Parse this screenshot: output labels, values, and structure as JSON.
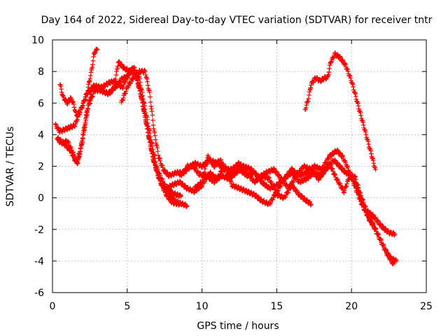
{
  "chart_data": {
    "type": "scatter",
    "title": "Day 164 of 2022, Sidereal Day-to-day VTEC variation (SDTVAR) for receiver tntr",
    "xlabel": "GPS time / hours",
    "ylabel": "SDTVAR / TECUs",
    "xlim": [
      0,
      25
    ],
    "ylim": [
      -6,
      10
    ],
    "xticks": [
      0,
      5,
      10,
      15,
      20,
      25
    ],
    "yticks": [
      -6,
      -4,
      -2,
      0,
      2,
      4,
      6,
      8,
      10
    ],
    "xtick_labels": [
      "0",
      "5",
      "10",
      "15",
      "20",
      "25"
    ],
    "ytick_labels": [
      "-6",
      "-4",
      "-2",
      "0",
      "2",
      "4",
      "6",
      "8",
      "10"
    ],
    "grid": true,
    "marker": "plus",
    "series": [
      {
        "name": "tntr",
        "color": "#ff0000",
        "tracks": [
          [
            [
              0.2,
              4.6
            ],
            [
              0.5,
              4.2
            ],
            [
              1.0,
              4.4
            ],
            [
              1.5,
              4.6
            ],
            [
              2.0,
              5.8
            ],
            [
              2.3,
              6.6
            ],
            [
              2.6,
              8.0
            ],
            [
              2.8,
              9.2
            ],
            [
              3.0,
              9.4
            ]
          ],
          [
            [
              0.4,
              3.6
            ],
            [
              0.8,
              3.4
            ],
            [
              1.2,
              3.0
            ],
            [
              1.5,
              2.4
            ],
            [
              1.7,
              2.2
            ],
            [
              2.0,
              3.6
            ],
            [
              2.4,
              5.8
            ],
            [
              2.8,
              6.8
            ],
            [
              3.2,
              6.8
            ],
            [
              3.7,
              6.6
            ],
            [
              4.2,
              7.0
            ],
            [
              4.7,
              7.6
            ],
            [
              5.0,
              7.6
            ],
            [
              5.4,
              8.3
            ],
            [
              5.8,
              7.6
            ],
            [
              6.2,
              5.6
            ],
            [
              6.6,
              3.6
            ],
            [
              7.0,
              1.8
            ],
            [
              7.5,
              0.8
            ],
            [
              8.0,
              0.3
            ],
            [
              8.6,
              0.1
            ]
          ],
          [
            [
              0.3,
              3.8
            ],
            [
              0.7,
              3.5
            ],
            [
              1.0,
              3.6
            ],
            [
              1.4,
              2.8
            ],
            [
              1.6,
              2.2
            ],
            [
              1.9,
              3.2
            ],
            [
              2.3,
              5.5
            ],
            [
              2.7,
              7.1
            ],
            [
              3.2,
              6.8
            ],
            [
              3.8,
              6.6
            ],
            [
              4.3,
              7.2
            ],
            [
              4.7,
              7.0
            ],
            [
              5.1,
              8.0
            ],
            [
              5.5,
              8.0
            ],
            [
              5.9,
              6.5
            ],
            [
              6.3,
              4.6
            ],
            [
              6.7,
              2.6
            ],
            [
              7.2,
              1.0
            ],
            [
              7.7,
              0.3
            ],
            [
              8.2,
              -0.2
            ],
            [
              8.7,
              -0.4
            ],
            [
              9.0,
              -0.5
            ]
          ],
          [
            [
              0.5,
              7.2
            ],
            [
              0.7,
              6.4
            ],
            [
              1.0,
              6.0
            ],
            [
              1.2,
              6.3
            ],
            [
              1.4,
              6.0
            ],
            [
              1.6,
              5.2
            ],
            [
              1.9,
              5.6
            ],
            [
              2.3,
              6.6
            ],
            [
              2.8,
              7.1
            ],
            [
              3.3,
              7.0
            ],
            [
              3.8,
              7.3
            ],
            [
              4.2,
              7.4
            ],
            [
              4.4,
              8.6
            ],
            [
              4.8,
              8.2
            ],
            [
              5.2,
              8.0
            ],
            [
              5.6,
              7.8
            ],
            [
              6.0,
              6.2
            ],
            [
              6.4,
              4.0
            ],
            [
              6.8,
              2.2
            ],
            [
              7.2,
              1.0
            ],
            [
              7.6,
              0.2
            ],
            [
              8.0,
              -0.3
            ],
            [
              8.5,
              -0.4
            ]
          ],
          [
            [
              4.6,
              6.0
            ],
            [
              5.0,
              7.0
            ],
            [
              5.4,
              7.6
            ],
            [
              5.8,
              8.0
            ],
            [
              6.2,
              8.0
            ],
            [
              6.5,
              6.6
            ],
            [
              6.8,
              4.2
            ],
            [
              7.1,
              2.6
            ],
            [
              7.4,
              1.8
            ],
            [
              7.8,
              1.4
            ],
            [
              8.3,
              1.6
            ],
            [
              8.8,
              1.6
            ],
            [
              9.0,
              2.0
            ],
            [
              9.4,
              2.0
            ],
            [
              9.8,
              1.5
            ],
            [
              10.3,
              1.4
            ],
            [
              10.8,
              1.0
            ],
            [
              11.3,
              1.4
            ],
            [
              11.8,
              1.2
            ],
            [
              12.3,
              1.6
            ],
            [
              12.8,
              2.0
            ],
            [
              13.3,
              1.8
            ],
            [
              13.8,
              1.3
            ],
            [
              14.3,
              1.6
            ],
            [
              14.8,
              1.8
            ],
            [
              15.3,
              1.2
            ],
            [
              15.8,
              0.6
            ],
            [
              16.3,
              1.4
            ],
            [
              16.8,
              2.0
            ],
            [
              17.3,
              1.8
            ],
            [
              17.8,
              1.2
            ],
            [
              18.3,
              1.8
            ],
            [
              18.8,
              2.4
            ],
            [
              19.2,
              2.0
            ],
            [
              19.6,
              1.6
            ],
            [
              20.0,
              1.4
            ],
            [
              20.4,
              0.6
            ],
            [
              20.8,
              -0.6
            ],
            [
              21.2,
              -1.4
            ],
            [
              21.6,
              -2.0
            ],
            [
              22.0,
              -2.8
            ],
            [
              22.4,
              -3.6
            ],
            [
              22.8,
              -4.2
            ]
          ],
          [
            [
              7.6,
              0.6
            ],
            [
              8.0,
              0.8
            ],
            [
              8.5,
              1.0
            ],
            [
              9.0,
              0.6
            ],
            [
              9.5,
              0.4
            ],
            [
              10.0,
              0.8
            ],
            [
              10.5,
              1.6
            ],
            [
              11.0,
              1.2
            ],
            [
              11.5,
              2.0
            ],
            [
              12.0,
              1.4
            ],
            [
              12.5,
              1.8
            ],
            [
              13.0,
              1.4
            ],
            [
              13.5,
              1.6
            ],
            [
              14.0,
              1.0
            ],
            [
              14.5,
              0.6
            ],
            [
              15.0,
              0.8
            ],
            [
              15.5,
              1.2
            ],
            [
              16.0,
              1.6
            ],
            [
              16.5,
              1.0
            ],
            [
              17.0,
              1.2
            ],
            [
              17.5,
              1.6
            ],
            [
              18.0,
              1.4
            ],
            [
              18.5,
              2.2
            ],
            [
              19.0,
              1.2
            ],
            [
              19.5,
              0.4
            ],
            [
              19.8,
              1.2
            ],
            [
              20.2,
              1.4
            ],
            [
              20.6,
              0.2
            ],
            [
              21.0,
              -0.8
            ],
            [
              21.5,
              -1.2
            ],
            [
              22.0,
              -1.8
            ],
            [
              22.5,
              -2.2
            ],
            [
              22.9,
              -2.3
            ]
          ],
          [
            [
              8.5,
              1.4
            ],
            [
              9.0,
              1.8
            ],
            [
              9.5,
              2.2
            ],
            [
              10.0,
              2.0
            ],
            [
              10.5,
              2.4
            ],
            [
              11.0,
              2.2
            ],
            [
              11.5,
              1.8
            ],
            [
              12.0,
              1.8
            ],
            [
              12.5,
              2.2
            ],
            [
              13.0,
              1.6
            ],
            [
              13.5,
              1.0
            ],
            [
              14.0,
              1.4
            ],
            [
              14.5,
              1.2
            ],
            [
              15.0,
              0.2
            ],
            [
              15.5,
              0.0
            ],
            [
              16.0,
              0.8
            ],
            [
              16.5,
              0.2
            ],
            [
              17.0,
              -0.2
            ],
            [
              17.3,
              -0.4
            ]
          ],
          [
            [
              9.5,
              0.6
            ],
            [
              10.0,
              1.0
            ],
            [
              10.4,
              2.6
            ],
            [
              10.8,
              2.0
            ],
            [
              11.2,
              2.4
            ],
            [
              11.6,
              1.8
            ],
            [
              12.0,
              0.8
            ],
            [
              12.5,
              0.6
            ],
            [
              13.0,
              0.4
            ],
            [
              13.5,
              0.2
            ],
            [
              14.0,
              -0.2
            ],
            [
              14.5,
              -0.4
            ],
            [
              15.0,
              0.4
            ],
            [
              15.5,
              1.2
            ],
            [
              16.0,
              1.8
            ],
            [
              16.5,
              1.4
            ],
            [
              17.0,
              1.6
            ],
            [
              17.5,
              2.0
            ],
            [
              18.0,
              1.8
            ],
            [
              18.5,
              2.6
            ],
            [
              19.0,
              3.0
            ],
            [
              19.4,
              2.6
            ],
            [
              19.8,
              1.8
            ],
            [
              20.2,
              0.8
            ],
            [
              20.6,
              -0.2
            ],
            [
              21.0,
              -1.0
            ],
            [
              21.4,
              -1.6
            ],
            [
              21.8,
              -2.4
            ],
            [
              22.2,
              -3.2
            ],
            [
              22.6,
              -3.8
            ],
            [
              23.0,
              -4.0
            ]
          ],
          [
            [
              16.9,
              5.6
            ],
            [
              17.1,
              6.2
            ],
            [
              17.3,
              7.2
            ],
            [
              17.6,
              7.6
            ],
            [
              17.9,
              7.4
            ],
            [
              18.2,
              7.6
            ],
            [
              18.4,
              7.6
            ],
            [
              18.6,
              8.6
            ],
            [
              18.9,
              9.1
            ],
            [
              19.2,
              8.9
            ],
            [
              19.6,
              8.4
            ],
            [
              20.0,
              7.4
            ],
            [
              20.4,
              6.0
            ],
            [
              20.8,
              4.6
            ],
            [
              21.2,
              3.2
            ],
            [
              21.6,
              1.8
            ]
          ]
        ]
      }
    ]
  }
}
